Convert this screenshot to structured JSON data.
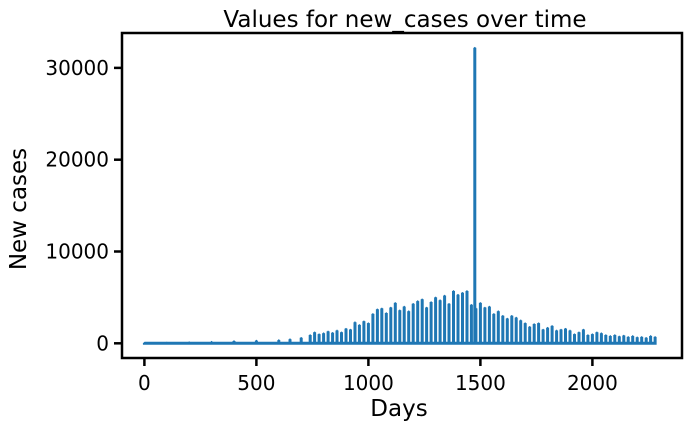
{
  "chart_data": {
    "type": "line",
    "title": "Values for new_cases over time",
    "xlabel": "Days",
    "ylabel": "New cases",
    "xlim": [
      -100,
      2400
    ],
    "ylim": [
      -1600,
      33800
    ],
    "xticks": [
      0,
      500,
      1000,
      1500,
      2000
    ],
    "yticks": [
      0,
      10000,
      20000,
      30000
    ],
    "grid": false,
    "series": [
      {
        "color": "#1f77b4",
        "x": [
          0,
          100,
          200,
          300,
          400,
          500,
          600,
          650,
          700,
          740,
          760,
          780,
          800,
          820,
          840,
          860,
          880,
          900,
          920,
          940,
          960,
          980,
          1000,
          1020,
          1040,
          1060,
          1080,
          1100,
          1120,
          1140,
          1160,
          1180,
          1200,
          1220,
          1240,
          1260,
          1280,
          1300,
          1320,
          1340,
          1360,
          1380,
          1400,
          1420,
          1440,
          1460,
          1475,
          1480,
          1500,
          1520,
          1540,
          1560,
          1580,
          1600,
          1620,
          1640,
          1660,
          1680,
          1700,
          1720,
          1740,
          1760,
          1780,
          1800,
          1820,
          1840,
          1860,
          1880,
          1900,
          1920,
          1940,
          1960,
          1980,
          2000,
          2020,
          2040,
          2060,
          2080,
          2100,
          2120,
          2140,
          2160,
          2180,
          2200,
          2220,
          2240,
          2260,
          2280
        ],
        "y": [
          50,
          80,
          120,
          180,
          250,
          300,
          350,
          450,
          600,
          900,
          1200,
          1000,
          1100,
          1300,
          1150,
          1400,
          1200,
          1600,
          1500,
          2300,
          2000,
          2400,
          2200,
          3200,
          3700,
          3800,
          3300,
          3900,
          4400,
          3600,
          4000,
          3500,
          4300,
          4600,
          4800,
          3900,
          4500,
          5000,
          4700,
          5200,
          4300,
          5700,
          5300,
          5500,
          5700,
          4200,
          32200,
          3800,
          4400,
          3900,
          4000,
          3200,
          3500,
          3000,
          2700,
          3000,
          2800,
          2500,
          2200,
          1800,
          2100,
          2200,
          1500,
          1700,
          1900,
          1400,
          1500,
          1600,
          1400,
          1000,
          1200,
          1500,
          900,
          1000,
          1200,
          1100,
          900,
          800,
          900,
          750,
          850,
          700,
          800,
          650,
          700,
          600,
          800,
          700
        ]
      }
    ]
  }
}
